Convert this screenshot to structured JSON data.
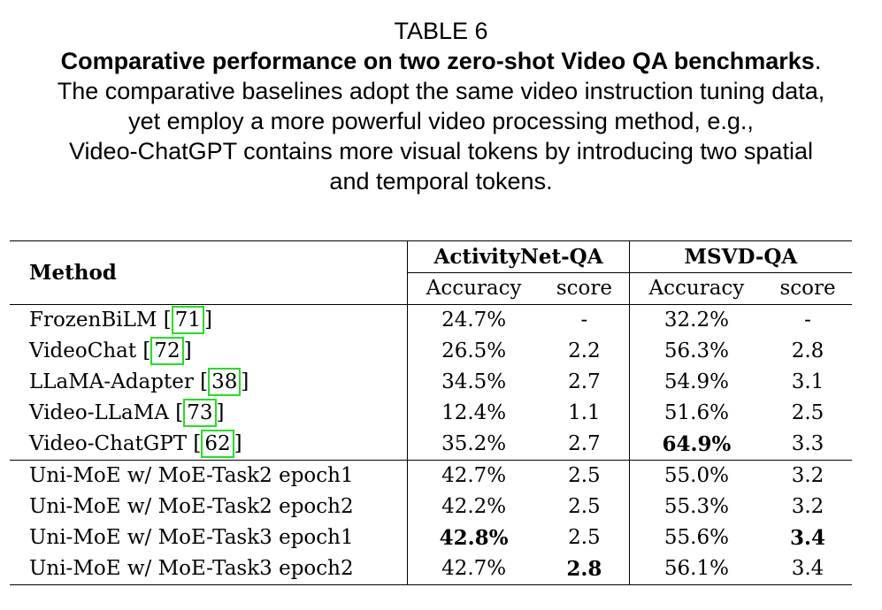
{
  "caption": {
    "table_number": "TABLE 6",
    "title_bold": "Comparative performance on two zero-shot Video QA benchmarks",
    "title_period": ".",
    "lines": [
      "The comparative baselines adopt the same video instruction tuning data,",
      "yet employ a more powerful video processing method, e.g.,",
      "Video-ChatGPT contains more visual tokens by introducing two spatial",
      "and temporal tokens."
    ]
  },
  "table": {
    "method_header": "Method",
    "groups": [
      "ActivityNet-QA",
      "MSVD-QA"
    ],
    "subheaders": [
      "Accuracy",
      "score",
      "Accuracy",
      "score"
    ],
    "baseline_rows": [
      {
        "method": "FrozenBiLM",
        "cite": "71",
        "vals": [
          "24.7%",
          "-",
          "32.2%",
          "-"
        ],
        "bold": []
      },
      {
        "method": "VideoChat",
        "cite": "72",
        "vals": [
          "26.5%",
          "2.2",
          "56.3%",
          "2.8"
        ],
        "bold": []
      },
      {
        "method": "LLaMA-Adapter",
        "cite": "38",
        "vals": [
          "34.5%",
          "2.7",
          "54.9%",
          "3.1"
        ],
        "bold": []
      },
      {
        "method": "Video-LLaMA",
        "cite": "73",
        "vals": [
          "12.4%",
          "1.1",
          "51.6%",
          "2.5"
        ],
        "bold": []
      },
      {
        "method": "Video-ChatGPT",
        "cite": "62",
        "vals": [
          "35.2%",
          "2.7",
          "64.9%",
          "3.3"
        ],
        "bold": [
          2
        ]
      }
    ],
    "ours_rows": [
      {
        "method": "Uni-MoE w/ MoE-Task2 epoch1",
        "vals": [
          "42.7%",
          "2.5",
          "55.0%",
          "3.2"
        ],
        "bold": []
      },
      {
        "method": "Uni-MoE w/ MoE-Task2 epoch2",
        "vals": [
          "42.2%",
          "2.5",
          "55.3%",
          "3.2"
        ],
        "bold": []
      },
      {
        "method": "Uni-MoE w/ MoE-Task3 epoch1",
        "vals": [
          "42.8%",
          "2.5",
          "55.6%",
          "3.4"
        ],
        "bold": [
          0,
          3
        ]
      },
      {
        "method": "Uni-MoE w/ MoE-Task3 epoch2",
        "vals": [
          "42.7%",
          "2.8",
          "56.1%",
          "3.4"
        ],
        "bold": [
          1
        ]
      }
    ]
  }
}
